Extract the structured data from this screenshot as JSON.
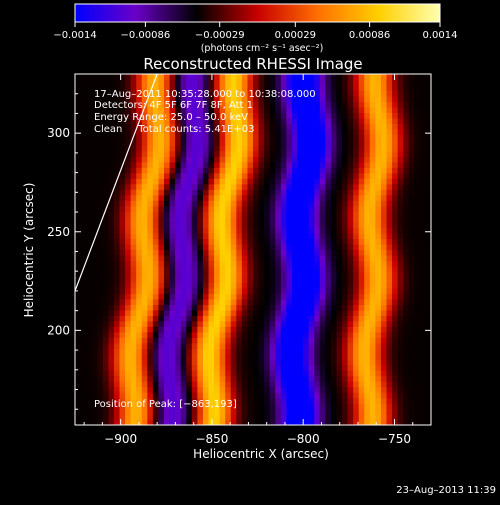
{
  "chart_data": {
    "type": "heatmap",
    "title": "Reconstructed RHESSI Image",
    "xlabel": "Heliocentric X (arcsec)",
    "ylabel": "Heliocentric Y (arcsec)",
    "xlim": [
      -925,
      -730
    ],
    "ylim": [
      152,
      330
    ],
    "xticks": [
      -900,
      -850,
      -800,
      -750
    ],
    "yticks": [
      200,
      250,
      300
    ],
    "xtick_labels": [
      "−900",
      "−850",
      "−800",
      "−750"
    ],
    "ytick_labels": [
      "200",
      "250",
      "300"
    ],
    "colorbar": {
      "unit_label": "(photons cm⁻² s⁻¹ asec⁻²)",
      "range": [
        -0.0014,
        0.0014
      ],
      "ticks": [
        -0.0014,
        -0.00086,
        -0.00029,
        0.00029,
        0.00086,
        0.0014
      ],
      "tick_labels": [
        "−0.0014",
        "−0.00086",
        "−0.00029",
        "0.00029",
        "0.00086",
        "0.0014"
      ],
      "colormap": [
        "#0000ff",
        "#6a00c8",
        "#000000",
        "#c80000",
        "#ff7000",
        "#ffd000",
        "#ffffb0"
      ]
    },
    "ridges": [
      {
        "x_top": -878,
        "x_bottom": -895,
        "amplitude": 0.00125,
        "sign": "positive"
      },
      {
        "x_top": -858,
        "x_bottom": -875,
        "amplitude": -0.0006,
        "sign": "negative"
      },
      {
        "x_top": -835,
        "x_bottom": -852,
        "amplitude": 0.0014,
        "sign": "positive"
      },
      {
        "x_top": -797,
        "x_bottom": -805,
        "amplitude": -0.0014,
        "sign": "negative"
      },
      {
        "x_top": -758,
        "x_bottom": -765,
        "amplitude": 0.00125,
        "sign": "positive"
      }
    ],
    "limb_line": {
      "points": [
        [
          -925,
          220
        ],
        [
          -880,
          330
        ]
      ],
      "color": "#ffffff"
    },
    "annotations": {
      "line1": "17–Aug–2011 10:35:28.000 to 10:38:08.000",
      "line2": "Detectors: 4F 5F 6F 7F 8F, Att 1",
      "line3": "Energy Range: 25.0 – 50.0 keV",
      "line4": "Clean     Total counts: 5.41E+03",
      "position": "Position of Peak: [−863,193]"
    },
    "timestamp": "23–Aug–2013 11:39"
  }
}
